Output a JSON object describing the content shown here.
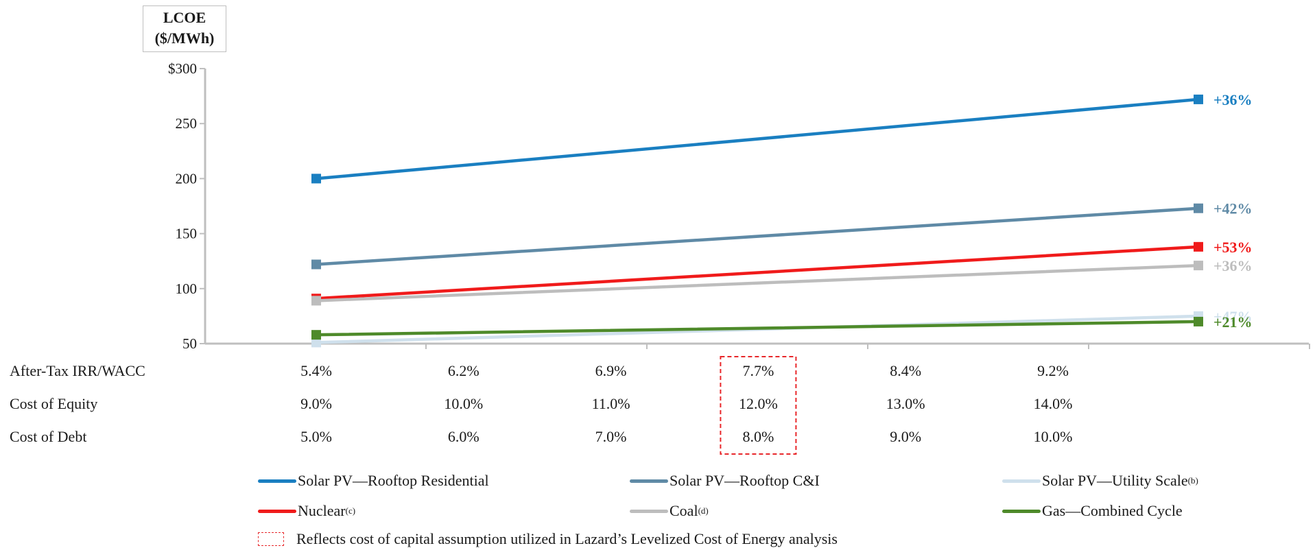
{
  "chart_data": {
    "type": "line",
    "title": "",
    "ylabel_line1": "LCOE",
    "ylabel_line2": "($/MWh)",
    "ylim": [
      50,
      300
    ],
    "yticks": [
      {
        "value": 300,
        "label": "$300"
      },
      {
        "value": 250,
        "label": "250"
      },
      {
        "value": 200,
        "label": "200"
      },
      {
        "value": 150,
        "label": "150"
      },
      {
        "value": 100,
        "label": "100"
      },
      {
        "value": 50,
        "label": "50"
      }
    ],
    "x_index": [
      0,
      1,
      2,
      3,
      4,
      5
    ],
    "highlight_index": 3,
    "table_rows": [
      {
        "label": "After-Tax IRR/WACC",
        "values": [
          "5.4%",
          "6.2%",
          "6.9%",
          "7.7%",
          "8.4%",
          "9.2%"
        ]
      },
      {
        "label": "Cost of Equity",
        "values": [
          "9.0%",
          "10.0%",
          "11.0%",
          "12.0%",
          "13.0%",
          "14.0%"
        ]
      },
      {
        "label": "Cost of Debt",
        "values": [
          "5.0%",
          "6.0%",
          "7.0%",
          "8.0%",
          "9.0%",
          "10.0%"
        ]
      }
    ],
    "series": [
      {
        "name": "Solar PV—Rooftop Residential",
        "sup": "",
        "color": "#1a7fc1",
        "start": 200,
        "end": 272,
        "change_label": "+36%",
        "bold": true
      },
      {
        "name": "Solar PV—Rooftop C&I",
        "sup": "",
        "color": "#5f8aa6",
        "start": 122,
        "end": 173,
        "change_label": "+42%",
        "bold": true
      },
      {
        "name": "Solar PV—Utility Scale",
        "sup": "(b)",
        "color": "#cfe0ec",
        "start": 51,
        "end": 75,
        "change_label": "+47%",
        "bold": true
      },
      {
        "name": "Nuclear",
        "sup": "(c)",
        "color": "#f01b1b",
        "start": 91,
        "end": 138,
        "change_label": "+53%",
        "bold": true
      },
      {
        "name": "Coal",
        "sup": "(d)",
        "color": "#bdbdbd",
        "start": 89,
        "end": 121,
        "change_label": "+36%",
        "bold": true
      },
      {
        "name": "Gas—Combined Cycle",
        "sup": "",
        "color": "#4e8a2a",
        "start": 58,
        "end": 70,
        "change_label": "+21%",
        "bold": true
      }
    ],
    "note": "Reflects cost of capital assumption utilized in Lazard’s Levelized Cost of Energy analysis",
    "note_color": "#e8272a"
  }
}
